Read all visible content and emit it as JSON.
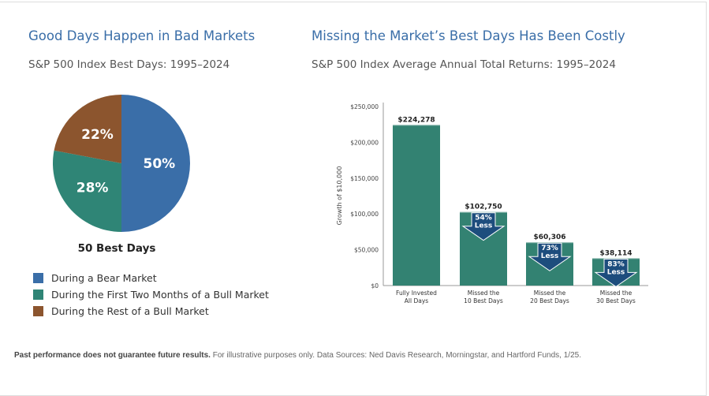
{
  "left": {
    "title": "Good Days Happen in Bad Markets",
    "subtitle": "S&P 500 Index Best Days: 1995–2024"
  },
  "right": {
    "title": "Missing the Market’s Best Days Has Been Costly",
    "subtitle": "S&P 500 Index Average Annual Total Returns: 1995–2024"
  },
  "footer": {
    "bold": "Past performance does not guarantee future results.",
    "text": " For illustrative purposes only. Data Sources: Ned Davis Research, Morningstar, and Hartford Funds, 1/25."
  },
  "chart_data": [
    {
      "type": "pie",
      "caption": "50 Best Days",
      "slices": [
        {
          "name": "During a Bear Market",
          "value": 50,
          "label": "50%",
          "color": "#3a6ea8"
        },
        {
          "name": "During the First Two Months of a Bull Market",
          "value": 28,
          "label": "28%",
          "color": "#2f8576"
        },
        {
          "name": "During the Rest of a Bull Market",
          "value": 22,
          "label": "22%",
          "color": "#8c552e"
        }
      ]
    },
    {
      "type": "bar",
      "ylabel": "Growth of $10,000",
      "ylim": [
        0,
        250000
      ],
      "yticks": [
        "$0",
        "$50,000",
        "$100,000",
        "$150,000",
        "$200,000",
        "$250,000"
      ],
      "categories": [
        [
          "Fully Invested",
          "All Days"
        ],
        [
          "Missed the",
          "10 Best Days"
        ],
        [
          "Missed the",
          "20 Best Days"
        ],
        [
          "Missed the",
          "30 Best Days"
        ]
      ],
      "values": [
        224278,
        102750,
        60306,
        38114
      ],
      "value_labels": [
        "$224,278",
        "$102,750",
        "$60,306",
        "$38,114"
      ],
      "annotations": [
        null,
        [
          "54%",
          "Less"
        ],
        [
          "73%",
          "Less"
        ],
        [
          "83%",
          "Less"
        ]
      ],
      "bar_color": "#338272",
      "arrow_color": "#1d4d7d",
      "grid": false
    }
  ]
}
